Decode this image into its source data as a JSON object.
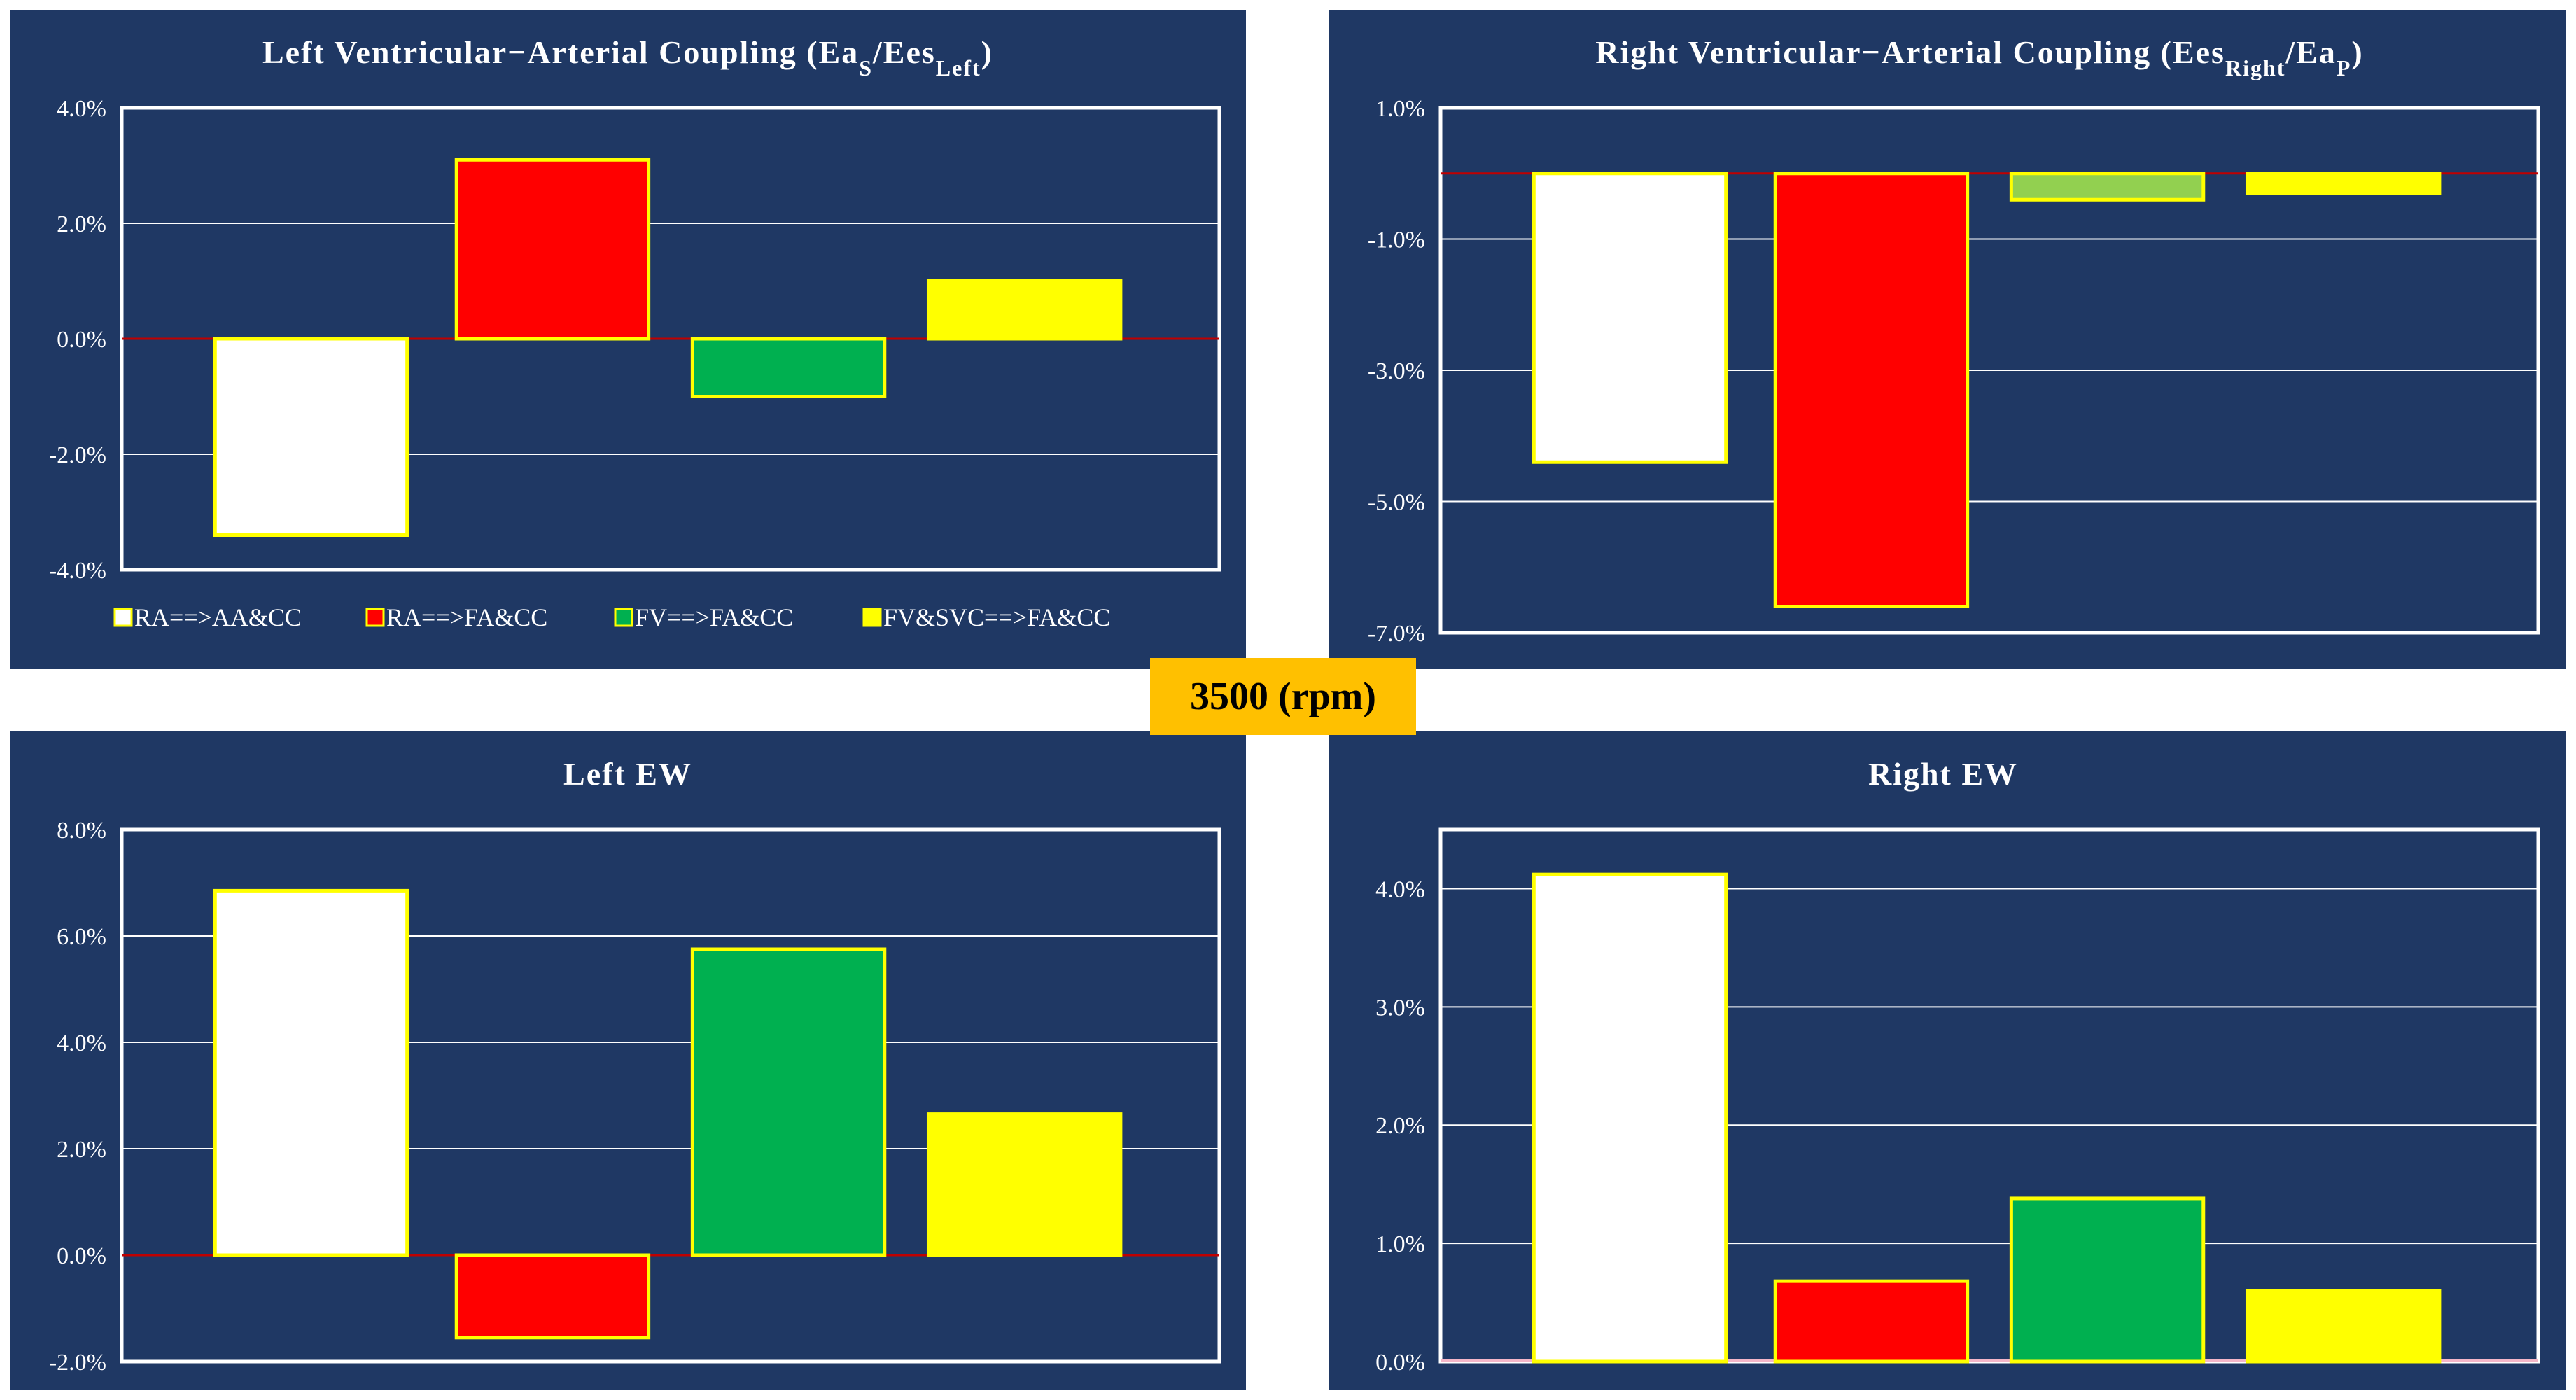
{
  "badge": "3500 (rpm)",
  "colors": {
    "background": "#1f3864",
    "border": "#ffff00",
    "zero_line": "#c00000",
    "grid": "#ffffff"
  },
  "legend": {
    "position": "bottom",
    "entries": [
      {
        "label": "RA==>AA&CC",
        "color": "#ffffff"
      },
      {
        "label": "RA==>FA&CC",
        "color": "#ff0000"
      },
      {
        "label": "FV==>FA&CC",
        "color": "#00b050"
      },
      {
        "label": "FV&SVC==>FA&CC",
        "color": "#ffff00"
      }
    ]
  },
  "chart_data": [
    {
      "type": "bar",
      "title": "Left Ventricular−Arterial Coupling (Ea",
      "title_sub1": "S",
      "title_mid": "/Ees",
      "title_sub2": "Left",
      "title_end": ")",
      "categories": [
        "RA==>AA&CC",
        "RA==>FA&CC",
        "FV==>FA&CC",
        "FV&SVC==>FA&CC"
      ],
      "values": [
        -3.4,
        3.1,
        -1.0,
        1.0
      ],
      "colors": [
        "#ffffff",
        "#ff0000",
        "#00b050",
        "#ffff00"
      ],
      "ylim": [
        -4,
        4
      ],
      "yticks": [
        4,
        2,
        0,
        -2,
        -4
      ],
      "ytick_labels": [
        "4.0%",
        "2.0%",
        "0.0%",
        "-2.0%",
        "-4.0%"
      ],
      "zero_line": true,
      "grid": true
    },
    {
      "type": "bar",
      "title": "Right Ventricular−Arterial Coupling (Ees",
      "title_sub1": "Right",
      "title_mid": "/Ea",
      "title_sub2": "P",
      "title_end": ")",
      "categories": [
        "RA==>AA&CC",
        "RA==>FA&CC",
        "FV==>FA&CC",
        "FV&SVC==>FA&CC"
      ],
      "values": [
        -4.4,
        -6.6,
        -0.4,
        -0.3
      ],
      "colors": [
        "#ffffff",
        "#ff0000",
        "#92d050",
        "#ffff00"
      ],
      "ylim": [
        -7,
        1
      ],
      "yticks": [
        1,
        -1,
        -3,
        -5,
        -7
      ],
      "ytick_labels": [
        "1.0%",
        "-1.0%",
        "-3.0%",
        "-5.0%",
        "-7.0%"
      ],
      "zero_line": true,
      "grid": true
    },
    {
      "type": "bar",
      "title": "Left EW",
      "categories": [
        "RA==>AA&CC",
        "RA==>FA&CC",
        "FV==>FA&CC",
        "FV&SVC==>FA&CC"
      ],
      "values": [
        6.85,
        -1.55,
        5.75,
        2.65
      ],
      "colors": [
        "#ffffff",
        "#ff0000",
        "#00b050",
        "#ffff00"
      ],
      "ylim": [
        -2,
        8
      ],
      "yticks": [
        8,
        6,
        4,
        2,
        0,
        -2
      ],
      "ytick_labels": [
        "8.0%",
        "6.0%",
        "4.0%",
        "2.0%",
        "0.0%",
        "-2.0%"
      ],
      "zero_line": true,
      "grid": true
    },
    {
      "type": "bar",
      "title": "Right EW",
      "categories": [
        "RA==>AA&CC",
        "RA==>FA&CC",
        "FV==>FA&CC",
        "FV&SVC==>FA&CC"
      ],
      "values": [
        4.12,
        0.68,
        1.38,
        0.6
      ],
      "colors": [
        "#ffffff",
        "#ff0000",
        "#00b050",
        "#ffff00"
      ],
      "ylim": [
        0,
        4.5
      ],
      "yticks": [
        4,
        3,
        2,
        1,
        0
      ],
      "ytick_labels": [
        "4.0%",
        "3.0%",
        "2.0%",
        "1.0%",
        "0.0%"
      ],
      "zero_line": false,
      "grid": true
    }
  ]
}
